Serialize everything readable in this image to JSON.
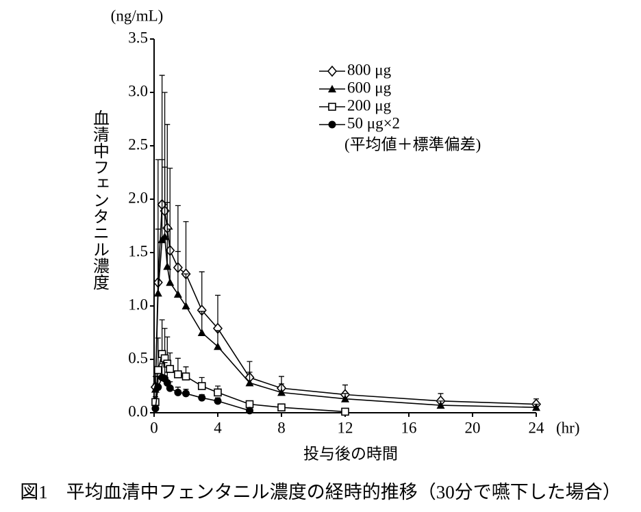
{
  "chart_data": {
    "type": "line",
    "y_unit": "(ng/mL)",
    "ylabel": "血清中フェンタニル濃度",
    "xlabel": "投与後の時間",
    "x_unit": "(hr)",
    "legend_note": "(平均値＋標準偏差)",
    "caption": "図1　平均血清中フェンタニル濃度の経時的推移（30分で嚥下した場合）",
    "x": [
      0.083,
      0.25,
      0.5,
      0.67,
      0.83,
      1,
      1.5,
      2,
      3,
      4,
      6,
      8,
      12,
      18,
      24
    ],
    "series": [
      {
        "name": "800 μg",
        "color": "#000000",
        "marker": "diamond",
        "values": [
          0.24,
          1.22,
          1.95,
          1.89,
          1.73,
          1.52,
          1.36,
          1.3,
          0.96,
          0.79,
          0.33,
          0.23,
          0.17,
          0.11,
          0.08
        ],
        "errors": [
          0.1,
          1.15,
          1.21,
          1.11,
          0.97,
          0.77,
          0.58,
          0.49,
          0.36,
          0.31,
          0.15,
          0.11,
          0.09,
          0.07,
          0.05
        ]
      },
      {
        "name": "600 μg",
        "color": "#000000",
        "marker": "triangle",
        "values": [
          0.22,
          1.12,
          1.62,
          1.65,
          1.37,
          1.22,
          1.11,
          1.0,
          0.75,
          0.62,
          0.28,
          0.19,
          0.13,
          0.07,
          0.05
        ],
        "errors": [
          0.05,
          0.6,
          0.75,
          0.65,
          0.6,
          0.5,
          0.4,
          0.3,
          0.2,
          0.15,
          0.1,
          0.08,
          0.05,
          0.04,
          0.03
        ]
      },
      {
        "name": "200 μg",
        "color": "#000000",
        "marker": "square",
        "values": [
          0.1,
          0.4,
          0.55,
          0.51,
          0.46,
          0.41,
          0.36,
          0.34,
          0.25,
          0.19,
          0.08,
          0.05,
          0.01,
          null,
          null
        ],
        "errors": [
          0.05,
          0.3,
          0.32,
          0.28,
          0.25,
          0.15,
          0.15,
          0.09,
          0.08,
          0.06,
          0.03,
          0.02,
          0.01,
          null,
          null
        ]
      },
      {
        "name": "50 μg×2",
        "color": "#000000",
        "marker": "circle",
        "values": [
          0.04,
          0.24,
          0.33,
          0.32,
          0.28,
          0.23,
          0.19,
          0.18,
          0.14,
          0.11,
          0.02,
          null,
          null,
          null,
          null
        ],
        "errors": [
          0.03,
          0.1,
          0.13,
          0.15,
          0.1,
          0.06,
          0.05,
          0.04,
          0.03,
          0.03,
          0.01,
          null,
          null,
          null,
          null
        ]
      }
    ],
    "xlim": [
      0,
      24
    ],
    "xticks": [
      0,
      4,
      8,
      12,
      16,
      20,
      24
    ],
    "ylim": [
      0,
      3.5
    ],
    "yticks": [
      {
        "value": 0,
        "label": "0.0"
      },
      {
        "value": 0.5,
        "label": "0.5"
      },
      {
        "value": 1,
        "label": "1.0"
      },
      {
        "value": 1.5,
        "label": "1.5"
      },
      {
        "value": 2,
        "label": "2.0"
      },
      {
        "value": 2.5,
        "label": "2.5"
      },
      {
        "value": 3,
        "label": "3.0"
      },
      {
        "value": 3.5,
        "label": "3.5"
      }
    ],
    "grid": false,
    "legend": "upper right"
  }
}
